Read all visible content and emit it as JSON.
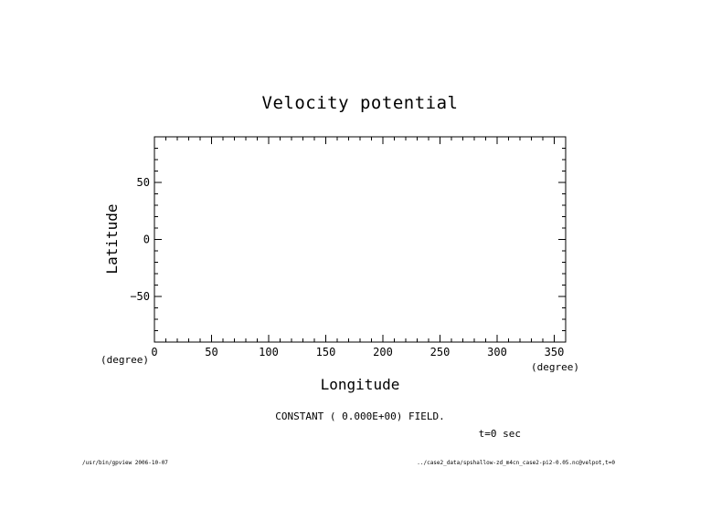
{
  "chart_data": {
    "type": "heatmap",
    "title": "Velocity potential",
    "xlabel": "Longitude",
    "ylabel": "Latitude",
    "xunit": "(degree)",
    "yunit": "(degree)",
    "xlim": [
      0,
      360
    ],
    "ylim": [
      -90,
      90
    ],
    "xticks": [
      0,
      50,
      100,
      150,
      200,
      250,
      300,
      350
    ],
    "yticks": [
      -50,
      0,
      50
    ],
    "x_minor_step": 10,
    "y_minor_step": 10,
    "grid": false,
    "field_note": "CONSTANT ( 0.000E+00) FIELD.",
    "time_label": "t=0 sec"
  },
  "footer": {
    "left": "/usr/bin/gpview  2006-10-07",
    "right": "../case2_data/spshallow-zd_m4cn_case2-pi2-0.05.nc@velpot,t=0"
  }
}
